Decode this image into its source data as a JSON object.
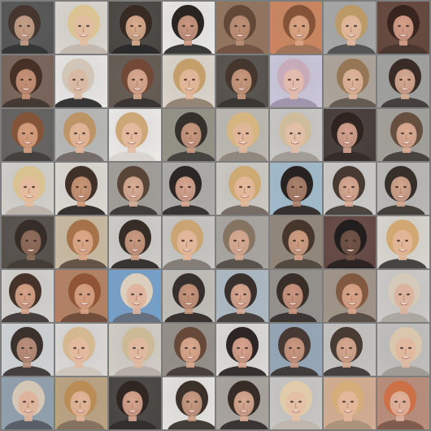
{
  "tiles": [
    {
      "bg": "#4a4a4a",
      "skin": "#c49a82",
      "hair": "#3a2a22",
      "shirt": "#2a2a2a"
    },
    {
      "bg": "#d8d3cc",
      "skin": "#e0b89c",
      "hair": "#d9c08e",
      "shirt": "#bfb4a8"
    },
    {
      "bg": "#3d3a36",
      "skin": "#d9a988",
      "hair": "#2b1e17",
      "shirt": "#1e1e1e"
    },
    {
      "bg": "#e9e7e4",
      "skin": "#c9927a",
      "hair": "#1d1714",
      "shirt": "#2d2d2d"
    },
    {
      "bg": "#8c6b52",
      "skin": "#b98a6f",
      "hair": "#5b3d2b",
      "shirt": "#6a4a3a"
    },
    {
      "bg": "#c97e55",
      "skin": "#d9a07c",
      "hair": "#7e4a2c",
      "shirt": "#9c6b4f"
    },
    {
      "bg": "#a2a2a2",
      "skin": "#e0b497",
      "hair": "#b7945f",
      "shirt": "#4a4a4a"
    },
    {
      "bg": "#5a3a2e",
      "skin": "#d59b84",
      "hair": "#2c1812",
      "shirt": "#3e2a22"
    },
    {
      "bg": "#6f5a4e",
      "skin": "#c58d70",
      "hair": "#3c2419",
      "shirt": "#3a2d28"
    },
    {
      "bg": "#e6e5e3",
      "skin": "#d6b59d",
      "hair": "#cfc3b4",
      "shirt": "#2a2a2a"
    },
    {
      "bg": "#5a4f47",
      "skin": "#d7a58a",
      "hair": "#6a3e2a",
      "shirt": "#2f2a27"
    },
    {
      "bg": "#d9d2c8",
      "skin": "#e1b496",
      "hair": "#c19a62",
      "shirt": "#8f7e6d"
    },
    {
      "bg": "#4b4640",
      "skin": "#c79476",
      "hair": "#3a2b21",
      "shirt": "#2d2a28"
    },
    {
      "bg": "#c8c4d9",
      "skin": "#e2b8a6",
      "hair": "#c4a6b4",
      "shirt": "#9b8fa8"
    },
    {
      "bg": "#a89f94",
      "skin": "#dbb093",
      "hair": "#8f6f4c",
      "shirt": "#5c524a"
    },
    {
      "bg": "#9a9a98",
      "skin": "#d6a78c",
      "hair": "#2d1f19",
      "shirt": "#3a3431"
    },
    {
      "bg": "#5a5856",
      "skin": "#d49a78",
      "hair": "#7c4a2c",
      "shirt": "#3a3634"
    },
    {
      "bg": "#b4b4b2",
      "skin": "#e0b193",
      "hair": "#b98e5d",
      "shirt": "#6c6460"
    },
    {
      "bg": "#ebe9e6",
      "skin": "#e3b79b",
      "hair": "#c9a26f",
      "shirt": "#d7d2cc"
    },
    {
      "bg": "#8e8c7e",
      "skin": "#c89478",
      "hair": "#2a2420",
      "shirt": "#3b3936"
    },
    {
      "bg": "#b8b4ad",
      "skin": "#e0b295",
      "hair": "#d3b27a",
      "shirt": "#8a8076"
    },
    {
      "bg": "#c6c5c3",
      "skin": "#e2bba2",
      "hair": "#cdb896",
      "shirt": "#9d9690"
    },
    {
      "bg": "#3a2f2c",
      "skin": "#d49e8a",
      "hair": "#231712",
      "shirt": "#2a1f1c"
    },
    {
      "bg": "#9d9a93",
      "skin": "#d9a88d",
      "hair": "#5d4433",
      "shirt": "#3e3834"
    },
    {
      "bg": "#cfcdc8",
      "skin": "#e4b698",
      "hair": "#d7bf8c",
      "shirt": "#b7aea4"
    },
    {
      "bg": "#dad6cf",
      "skin": "#c8906f",
      "hair": "#33241b",
      "shirt": "#2a2624"
    },
    {
      "bg": "#9b9893",
      "skin": "#d7a98f",
      "hair": "#4e3a2c",
      "shirt": "#35312e"
    },
    {
      "bg": "#a8a6a2",
      "skin": "#d6a18a",
      "hair": "#1f1917",
      "shirt": "#2c2826"
    },
    {
      "bg": "#c9c6c0",
      "skin": "#e3b496",
      "hair": "#caa46c",
      "shirt": "#6e655d"
    },
    {
      "bg": "#9cb7c9",
      "skin": "#a77a63",
      "hair": "#1b1513",
      "shirt": "#2a2522"
    },
    {
      "bg": "#c8c7c5",
      "skin": "#d8a58c",
      "hair": "#3c2e27",
      "shirt": "#403934"
    },
    {
      "bg": "#b5b4b1",
      "skin": "#d2a186",
      "hair": "#2a221d",
      "shirt": "#3a3430"
    },
    {
      "bg": "#4b453f",
      "skin": "#8a6552",
      "hair": "#2b201b",
      "shirt": "#3a322c"
    },
    {
      "bg": "#c6b69c",
      "skin": "#d8a282",
      "hair": "#a06a3e",
      "shirt": "#5b4a3c"
    },
    {
      "bg": "#cbc9c5",
      "skin": "#c9957a",
      "hair": "#2a201a",
      "shirt": "#2c2826"
    },
    {
      "bg": "#c4c3bf",
      "skin": "#e2b497",
      "hair": "#c79f6a",
      "shirt": "#7e7670"
    },
    {
      "bg": "#a3a09b",
      "skin": "#d4a58a",
      "hair": "#7f6c5a",
      "shirt": "#4e4741"
    },
    {
      "bg": "#8c7f71",
      "skin": "#cf9a7c",
      "hair": "#3b2a1f",
      "shirt": "#4a3f37"
    },
    {
      "bg": "#5a3b36",
      "skin": "#6a4a3c",
      "hair": "#151010",
      "shirt": "#1f1616"
    },
    {
      "bg": "#d7d3cc",
      "skin": "#e1b394",
      "hair": "#cfa26a",
      "shirt": "#3c3a38"
    },
    {
      "bg": "#cfcecb",
      "skin": "#d59f82",
      "hair": "#3a261c",
      "shirt": "#3b3431"
    },
    {
      "bg": "#b07a58",
      "skin": "#d59c7c",
      "hair": "#8a4a2a",
      "shirt": "#6a4330"
    },
    {
      "bg": "#6e9ac6",
      "skin": "#dcae96",
      "hair": "#d9cbb8",
      "shirt": "#5d6878"
    },
    {
      "bg": "#bdbab4",
      "skin": "#c48f74",
      "hair": "#2a2320",
      "shirt": "#2b2624"
    },
    {
      "bg": "#a8b6c0",
      "skin": "#d8a38a",
      "hair": "#2d2220",
      "shirt": "#3a3432"
    },
    {
      "bg": "#8e8b86",
      "skin": "#c99078",
      "hair": "#2d211b",
      "shirt": "#2f2a27"
    },
    {
      "bg": "#9b8d80",
      "skin": "#d7a084",
      "hair": "#7a4f35",
      "shirt": "#4f433b"
    },
    {
      "bg": "#c9c8c6",
      "skin": "#d9ae96",
      "hair": "#d3c6b6",
      "shirt": "#a8a29c"
    },
    {
      "bg": "#cdd1d4",
      "skin": "#b78a73",
      "hair": "#2f2621",
      "shirt": "#3a3331"
    },
    {
      "bg": "#d9d7d4",
      "skin": "#e3b699",
      "hair": "#d2b48b",
      "shirt": "#cbc2b8"
    },
    {
      "bg": "#cfcac2",
      "skin": "#dfb59a",
      "hair": "#c9b58f",
      "shirt": "#b3aba2"
    },
    {
      "bg": "#8e8780",
      "skin": "#d8a488",
      "hair": "#5d3e2c",
      "shirt": "#3e3531"
    },
    {
      "bg": "#d9d8d6",
      "skin": "#d89f88",
      "hair": "#1f1816",
      "shirt": "#2a2421"
    },
    {
      "bg": "#8fa2b4",
      "skin": "#c9937a",
      "hair": "#3c2e28",
      "shirt": "#35302d"
    },
    {
      "bg": "#c2c0bd",
      "skin": "#d6a48a",
      "hair": "#3c2f27",
      "shirt": "#3a3431"
    },
    {
      "bg": "#bdbcba",
      "skin": "#e0b49a",
      "hair": "#d7c3a8",
      "shirt": "#9c958f"
    },
    {
      "bg": "#8a9aa8",
      "skin": "#dcae94",
      "hair": "#d3c4b1",
      "shirt": "#4e5660"
    },
    {
      "bg": "#b79e7c",
      "skin": "#ddb092",
      "hair": "#b7864c",
      "shirt": "#7e6a56"
    },
    {
      "bg": "#3c3835",
      "skin": "#d7a189",
      "hair": "#241a15",
      "shirt": "#262220"
    },
    {
      "bg": "#e3e1de",
      "skin": "#c7967c",
      "hair": "#2f241d",
      "shirt": "#38312c"
    },
    {
      "bg": "#a39e97",
      "skin": "#d6a58c",
      "hair": "#2c1f19",
      "shirt": "#2e2926"
    },
    {
      "bg": "#c6c4c1",
      "skin": "#e4bca1",
      "hair": "#dfc9a6",
      "shirt": "#bbb2a8"
    },
    {
      "bg": "#d1a88c",
      "skin": "#e2b497",
      "hair": "#d2a873",
      "shirt": "#a88c74"
    },
    {
      "bg": "#b58672",
      "skin": "#dcad96",
      "hair": "#c9683c",
      "shirt": "#7a5142"
    }
  ]
}
